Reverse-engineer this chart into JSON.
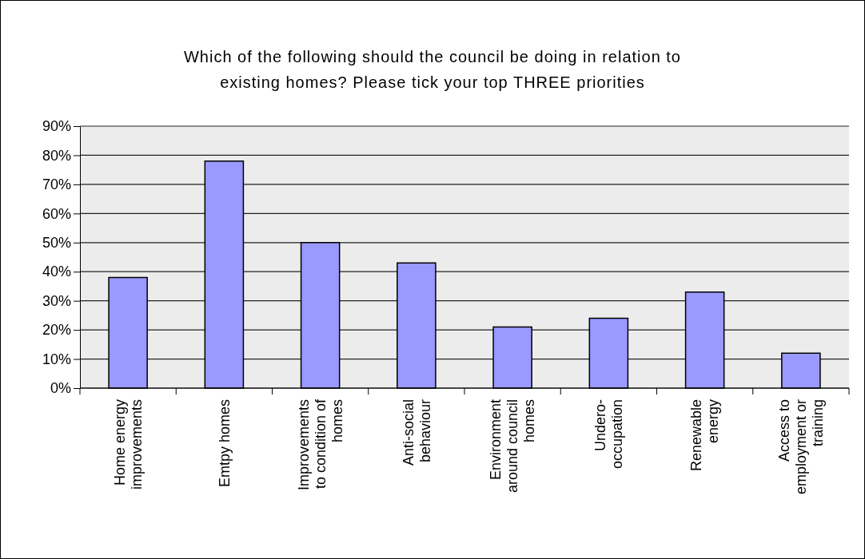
{
  "chart_data": {
    "type": "bar",
    "title": "Which of the following should the council be doing in relation to existing homes? Please tick your top THREE priorities",
    "categories": [
      "Home energy improvements",
      "Emtpy homes",
      "Improvements to condition of homes",
      "Anti-social behaviour",
      "Environment around council homes",
      "Undero-occupation",
      "Renewable energy",
      "Access to employment or training"
    ],
    "values": [
      38,
      78,
      50,
      43,
      21,
      24,
      33,
      12
    ],
    "color": "#9999ff",
    "ylim": [
      0,
      90
    ],
    "yticks": [
      {
        "value": 0,
        "label": "0%"
      },
      {
        "value": 10,
        "label": "10%"
      },
      {
        "value": 20,
        "label": "20%"
      },
      {
        "value": 30,
        "label": "30%"
      },
      {
        "value": 40,
        "label": "40%"
      },
      {
        "value": 50,
        "label": "50%"
      },
      {
        "value": 60,
        "label": "60%"
      },
      {
        "value": 70,
        "label": "70%"
      },
      {
        "value": 80,
        "label": "80%"
      },
      {
        "value": 90,
        "label": "90%"
      }
    ],
    "grid": "y"
  }
}
